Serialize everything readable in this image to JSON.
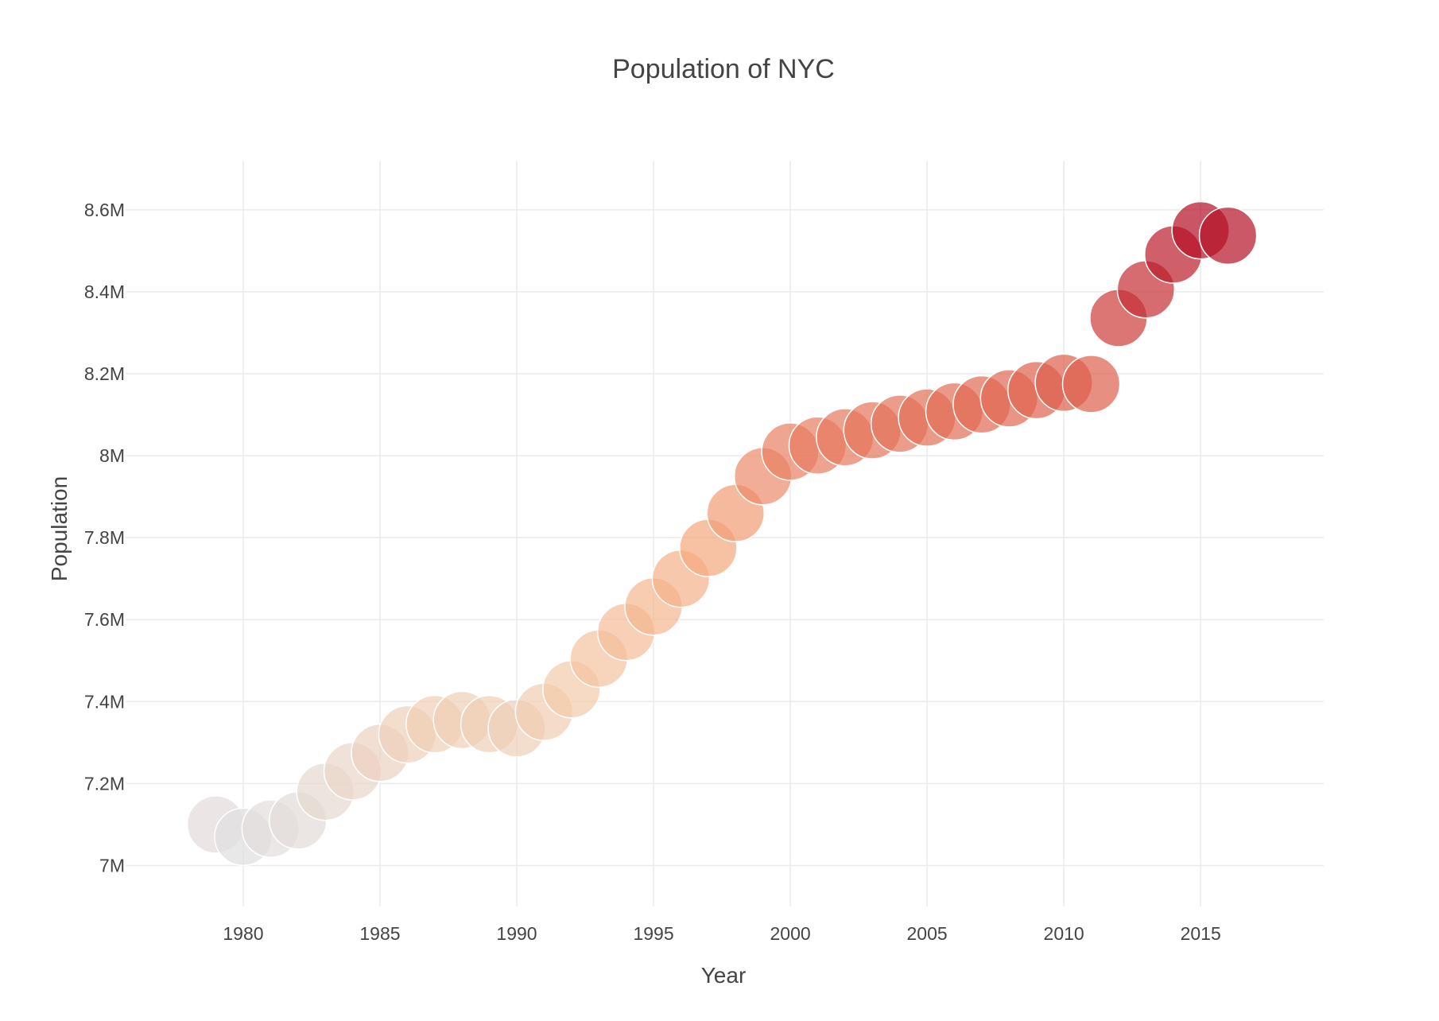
{
  "chart_data": {
    "type": "scatter",
    "title": "Population of NYC",
    "xlabel": "Year",
    "ylabel": "Population",
    "xlim": [
      1975.7,
      2019.5
    ],
    "ylim": [
      6900000.0,
      8720000.0
    ],
    "xticks": [
      1980,
      1985,
      1990,
      1995,
      2000,
      2005,
      2010,
      2015
    ],
    "xtick_labels": [
      "1980",
      "1985",
      "1990",
      "1995",
      "2000",
      "2005",
      "2010",
      "2015"
    ],
    "yticks": [
      7000000.0,
      7200000.0,
      7400000.0,
      7600000.0,
      7800000.0,
      8000000.0,
      8200000.0,
      8400000.0,
      8600000.0
    ],
    "ytick_labels": [
      "7M",
      "7.2M",
      "7.4M",
      "7.6M",
      "7.8M",
      "8M",
      "8.2M",
      "8.4M",
      "8.6M"
    ],
    "grid": true,
    "legend": "none",
    "marker_opacity": 0.7,
    "colorscale": [
      "#e0dedf",
      "#f4c9a7",
      "#f4a57a",
      "#dd5e4b",
      "#b40e24"
    ],
    "x": [
      1979,
      1980,
      1981,
      1982,
      1983,
      1984,
      1985,
      1986,
      1987,
      1988,
      1989,
      1990,
      1991,
      1992,
      1993,
      1994,
      1995,
      1996,
      1997,
      1998,
      1999,
      2000,
      2001,
      2002,
      2003,
      2004,
      2005,
      2006,
      2007,
      2008,
      2009,
      2010,
      2011,
      2012,
      2013,
      2014,
      2015,
      2016
    ],
    "y": [
      7100000,
      7070000,
      7090000,
      7110000,
      7180000,
      7230000,
      7275000,
      7320000,
      7345000,
      7355000,
      7345000,
      7335000,
      7375000,
      7430000,
      7505000,
      7570000,
      7632000,
      7700000,
      7775000,
      7860000,
      7950000,
      8010000,
      8025000,
      8045000,
      8062000,
      8078000,
      8093000,
      8108000,
      8125000,
      8140000,
      8160000,
      8178000,
      8175000,
      8336000,
      8406000,
      8491000,
      8550000,
      8537000
    ]
  }
}
